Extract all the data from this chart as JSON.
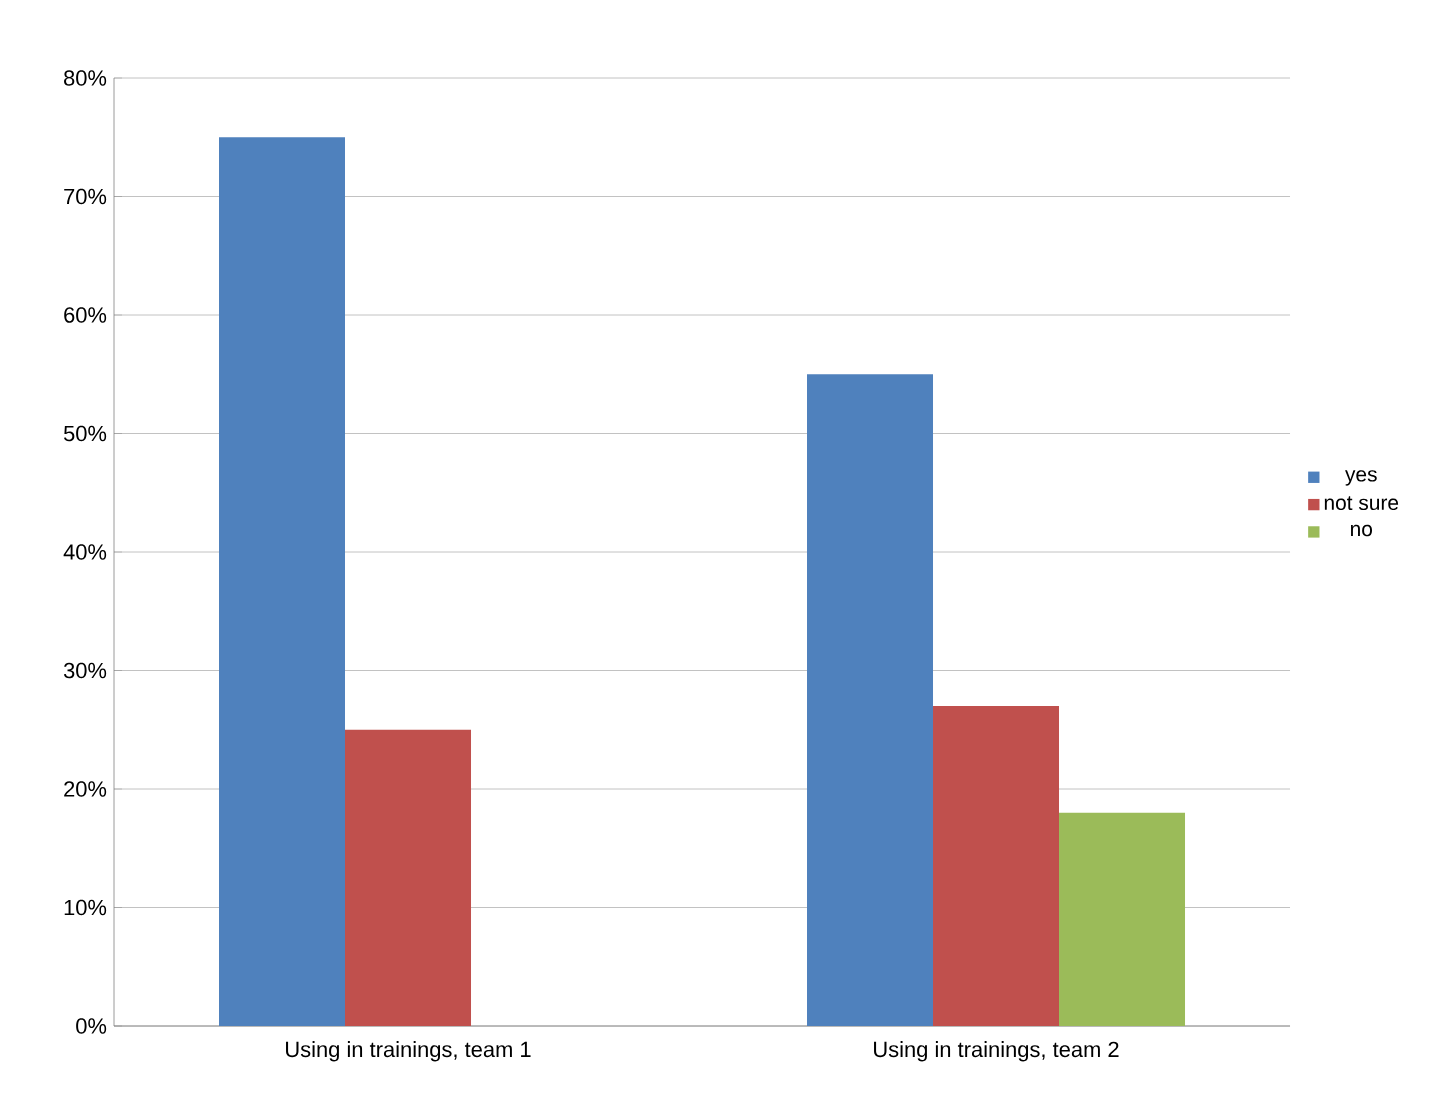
{
  "chart_data": {
    "type": "bar",
    "categories": [
      "Using in trainings, team 1",
      "Using in trainings, team 2"
    ],
    "series": [
      {
        "name": "yes",
        "color": "#4f81bd",
        "values": [
          75,
          55
        ]
      },
      {
        "name": "not sure",
        "color": "#c0504d",
        "values": [
          25,
          27
        ]
      },
      {
        "name": "no",
        "color": "#9bbb59",
        "values": [
          0,
          18
        ]
      }
    ],
    "ylim": [
      0,
      80
    ],
    "yticks": [
      {
        "value": 0,
        "label": "0%"
      },
      {
        "value": 10,
        "label": "10%"
      },
      {
        "value": 20,
        "label": "20%"
      },
      {
        "value": 30,
        "label": "30%"
      },
      {
        "value": 40,
        "label": "40%"
      },
      {
        "value": 50,
        "label": "50%"
      },
      {
        "value": 60,
        "label": "60%"
      },
      {
        "value": 70,
        "label": "70%"
      },
      {
        "value": 80,
        "label": "80%"
      }
    ],
    "grid": "y",
    "legend": "right"
  }
}
